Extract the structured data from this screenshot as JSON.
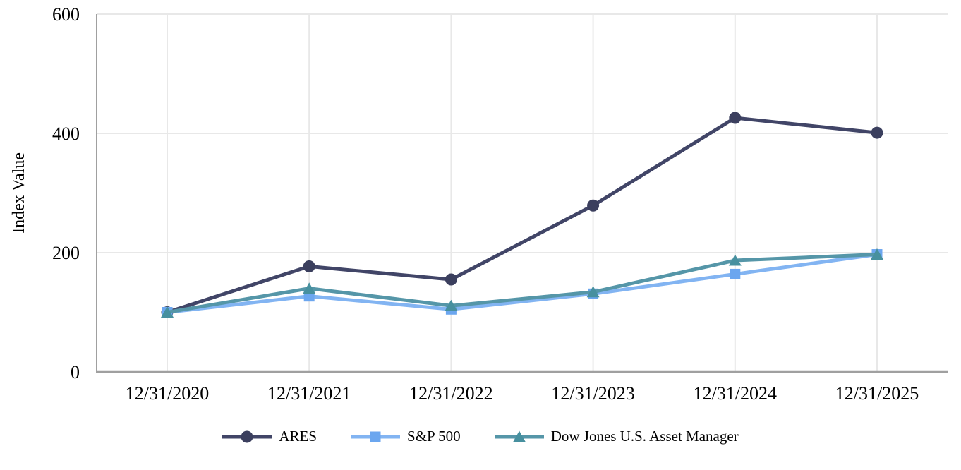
{
  "chart_data": {
    "type": "line",
    "title": "",
    "xlabel": "",
    "ylabel": "Index Value",
    "categories": [
      "12/31/2020",
      "12/31/2021",
      "12/31/2022",
      "12/31/2023",
      "12/31/2024",
      "12/31/2025"
    ],
    "yticks": [
      0,
      200,
      400,
      600
    ],
    "ylim": [
      0,
      600
    ],
    "grid": true,
    "legend_position": "bottom",
    "series": [
      {
        "name": "ARES",
        "marker": "circle",
        "color": "#414567",
        "marker_color": "#3B3F5E",
        "values": [
          100,
          177,
          155,
          279,
          426,
          401
        ]
      },
      {
        "name": "S&P 500",
        "marker": "square",
        "color": "#82B4F2",
        "marker_color": "#6BA6EF",
        "values": [
          100,
          127,
          105,
          131,
          164,
          197
        ]
      },
      {
        "name": "Dow Jones U.S. Asset Manager",
        "marker": "triangle",
        "color": "#5596A8",
        "marker_color": "#47909F",
        "values": [
          100,
          140,
          111,
          134,
          187,
          197
        ]
      }
    ],
    "colors": {
      "grid": "#E8E8E8",
      "axis": "#A0A0A0",
      "text": "#000000"
    }
  }
}
